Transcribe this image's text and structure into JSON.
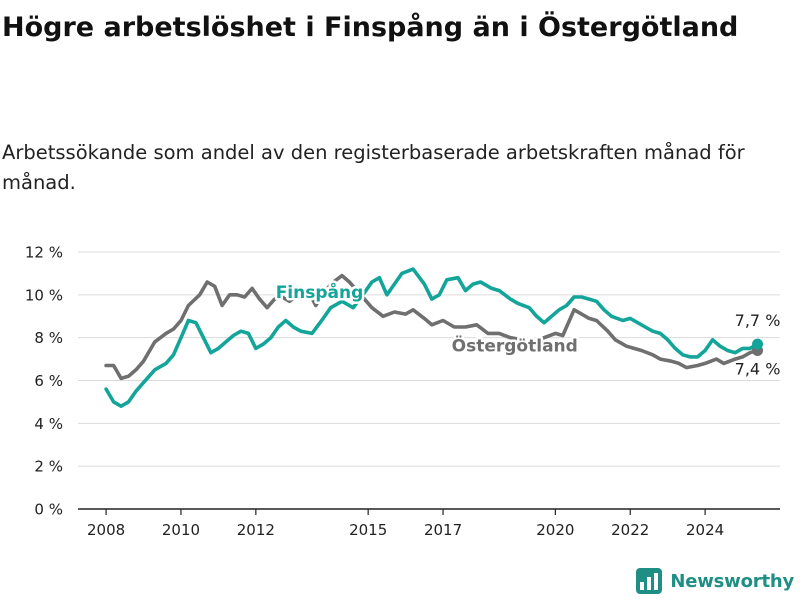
{
  "title": "Högre arbetslöshet i Finspång än i Östergötland",
  "subtitle": "Arbetssökande som andel av den registerbaserade arbetskraften månad för månad.",
  "brand": "Newsworthy",
  "colors": {
    "finspang": "#13a59a",
    "ostergotland": "#6f6f6f",
    "grid": "#dcdcdc",
    "text": "#222222",
    "brand": "#1f8f86"
  },
  "chart_data": {
    "type": "line",
    "y_unit": "%",
    "ylim": [
      0,
      12
    ],
    "y_ticks": [
      "0 %",
      "2 %",
      "4 %",
      "6 %",
      "8 %",
      "10 %",
      "12 %"
    ],
    "y_tick_values": [
      0,
      2,
      4,
      6,
      8,
      10,
      12
    ],
    "x_ticks": [
      "2008",
      "2010",
      "2012",
      "2015",
      "2017",
      "2020",
      "2022",
      "2024"
    ],
    "x_tick_values": [
      2008,
      2010,
      2012,
      2015,
      2017,
      2020,
      2022,
      2024
    ],
    "xlim": [
      2007.25,
      2026.0
    ],
    "grid": "horizontal",
    "series": [
      {
        "name": "Östergötland",
        "key": "ostergotland",
        "end_label": "7,4 %",
        "points": [
          [
            2008.0,
            6.7
          ],
          [
            2008.2,
            6.7
          ],
          [
            2008.4,
            6.1
          ],
          [
            2008.6,
            6.2
          ],
          [
            2008.8,
            6.5
          ],
          [
            2009.0,
            6.9
          ],
          [
            2009.3,
            7.8
          ],
          [
            2009.6,
            8.2
          ],
          [
            2009.8,
            8.4
          ],
          [
            2010.0,
            8.8
          ],
          [
            2010.2,
            9.5
          ],
          [
            2010.5,
            10.0
          ],
          [
            2010.7,
            10.6
          ],
          [
            2010.9,
            10.4
          ],
          [
            2011.1,
            9.5
          ],
          [
            2011.3,
            10.0
          ],
          [
            2011.5,
            10.0
          ],
          [
            2011.7,
            9.9
          ],
          [
            2011.9,
            10.3
          ],
          [
            2012.1,
            9.8
          ],
          [
            2012.3,
            9.4
          ],
          [
            2012.5,
            9.8
          ],
          [
            2012.7,
            9.9
          ],
          [
            2012.9,
            9.7
          ],
          [
            2013.2,
            10.1
          ],
          [
            2013.4,
            10.2
          ],
          [
            2013.6,
            9.5
          ],
          [
            2014.0,
            10.5
          ],
          [
            2014.3,
            10.9
          ],
          [
            2014.5,
            10.6
          ],
          [
            2014.8,
            10.0
          ],
          [
            2015.1,
            9.4
          ],
          [
            2015.4,
            9.0
          ],
          [
            2015.7,
            9.2
          ],
          [
            2016.0,
            9.1
          ],
          [
            2016.2,
            9.3
          ],
          [
            2016.5,
            8.9
          ],
          [
            2016.7,
            8.6
          ],
          [
            2017.0,
            8.8
          ],
          [
            2017.3,
            8.5
          ],
          [
            2017.6,
            8.5
          ],
          [
            2017.9,
            8.6
          ],
          [
            2018.2,
            8.2
          ],
          [
            2018.5,
            8.2
          ],
          [
            2018.8,
            8.0
          ],
          [
            2019.1,
            7.9
          ],
          [
            2019.4,
            7.8
          ],
          [
            2019.7,
            8.0
          ],
          [
            2020.0,
            8.2
          ],
          [
            2020.2,
            8.1
          ],
          [
            2020.5,
            9.3
          ],
          [
            2020.7,
            9.1
          ],
          [
            2020.9,
            8.9
          ],
          [
            2021.1,
            8.8
          ],
          [
            2021.4,
            8.3
          ],
          [
            2021.6,
            7.9
          ],
          [
            2021.9,
            7.6
          ],
          [
            2022.1,
            7.5
          ],
          [
            2022.3,
            7.4
          ],
          [
            2022.6,
            7.2
          ],
          [
            2022.8,
            7.0
          ],
          [
            2023.1,
            6.9
          ],
          [
            2023.3,
            6.8
          ],
          [
            2023.5,
            6.6
          ],
          [
            2023.8,
            6.7
          ],
          [
            2024.0,
            6.8
          ],
          [
            2024.3,
            7.0
          ],
          [
            2024.5,
            6.8
          ],
          [
            2024.8,
            7.0
          ],
          [
            2025.0,
            7.1
          ],
          [
            2025.2,
            7.3
          ],
          [
            2025.4,
            7.4
          ]
        ]
      },
      {
        "name": "Finspång",
        "key": "finspang",
        "end_label": "7,7 %",
        "points": [
          [
            2008.0,
            5.6
          ],
          [
            2008.2,
            5.0
          ],
          [
            2008.4,
            4.8
          ],
          [
            2008.6,
            5.0
          ],
          [
            2008.8,
            5.5
          ],
          [
            2009.0,
            5.9
          ],
          [
            2009.3,
            6.5
          ],
          [
            2009.6,
            6.8
          ],
          [
            2009.8,
            7.2
          ],
          [
            2010.0,
            8.0
          ],
          [
            2010.2,
            8.8
          ],
          [
            2010.4,
            8.7
          ],
          [
            2010.6,
            8.0
          ],
          [
            2010.8,
            7.3
          ],
          [
            2011.0,
            7.5
          ],
          [
            2011.2,
            7.8
          ],
          [
            2011.4,
            8.1
          ],
          [
            2011.6,
            8.3
          ],
          [
            2011.8,
            8.2
          ],
          [
            2012.0,
            7.5
          ],
          [
            2012.2,
            7.7
          ],
          [
            2012.4,
            8.0
          ],
          [
            2012.6,
            8.5
          ],
          [
            2012.8,
            8.8
          ],
          [
            2013.0,
            8.5
          ],
          [
            2013.2,
            8.3
          ],
          [
            2013.5,
            8.2
          ],
          [
            2013.8,
            8.9
          ],
          [
            2014.0,
            9.4
          ],
          [
            2014.3,
            9.7
          ],
          [
            2014.6,
            9.4
          ],
          [
            2014.9,
            10.1
          ],
          [
            2015.1,
            10.6
          ],
          [
            2015.3,
            10.8
          ],
          [
            2015.5,
            10.0
          ],
          [
            2015.7,
            10.5
          ],
          [
            2015.9,
            11.0
          ],
          [
            2016.2,
            11.2
          ],
          [
            2016.5,
            10.5
          ],
          [
            2016.7,
            9.8
          ],
          [
            2016.9,
            10.0
          ],
          [
            2017.1,
            10.7
          ],
          [
            2017.4,
            10.8
          ],
          [
            2017.6,
            10.2
          ],
          [
            2017.8,
            10.5
          ],
          [
            2018.0,
            10.6
          ],
          [
            2018.3,
            10.3
          ],
          [
            2018.5,
            10.2
          ],
          [
            2018.8,
            9.8
          ],
          [
            2019.0,
            9.6
          ],
          [
            2019.3,
            9.4
          ],
          [
            2019.5,
            9.0
          ],
          [
            2019.7,
            8.7
          ],
          [
            2019.9,
            9.0
          ],
          [
            2020.1,
            9.3
          ],
          [
            2020.3,
            9.5
          ],
          [
            2020.5,
            9.9
          ],
          [
            2020.7,
            9.9
          ],
          [
            2020.9,
            9.8
          ],
          [
            2021.1,
            9.7
          ],
          [
            2021.3,
            9.3
          ],
          [
            2021.5,
            9.0
          ],
          [
            2021.8,
            8.8
          ],
          [
            2022.0,
            8.9
          ],
          [
            2022.2,
            8.7
          ],
          [
            2022.4,
            8.5
          ],
          [
            2022.6,
            8.3
          ],
          [
            2022.8,
            8.2
          ],
          [
            2023.0,
            7.9
          ],
          [
            2023.2,
            7.5
          ],
          [
            2023.4,
            7.2
          ],
          [
            2023.6,
            7.1
          ],
          [
            2023.8,
            7.1
          ],
          [
            2024.0,
            7.4
          ],
          [
            2024.2,
            7.9
          ],
          [
            2024.4,
            7.6
          ],
          [
            2024.6,
            7.4
          ],
          [
            2024.8,
            7.3
          ],
          [
            2025.0,
            7.5
          ],
          [
            2025.2,
            7.5
          ],
          [
            2025.4,
            7.7
          ]
        ]
      }
    ],
    "inline_labels": [
      {
        "series": "finspang",
        "text": "Finspång"
      },
      {
        "series": "ostergotland",
        "text": "Östergötland"
      }
    ]
  }
}
